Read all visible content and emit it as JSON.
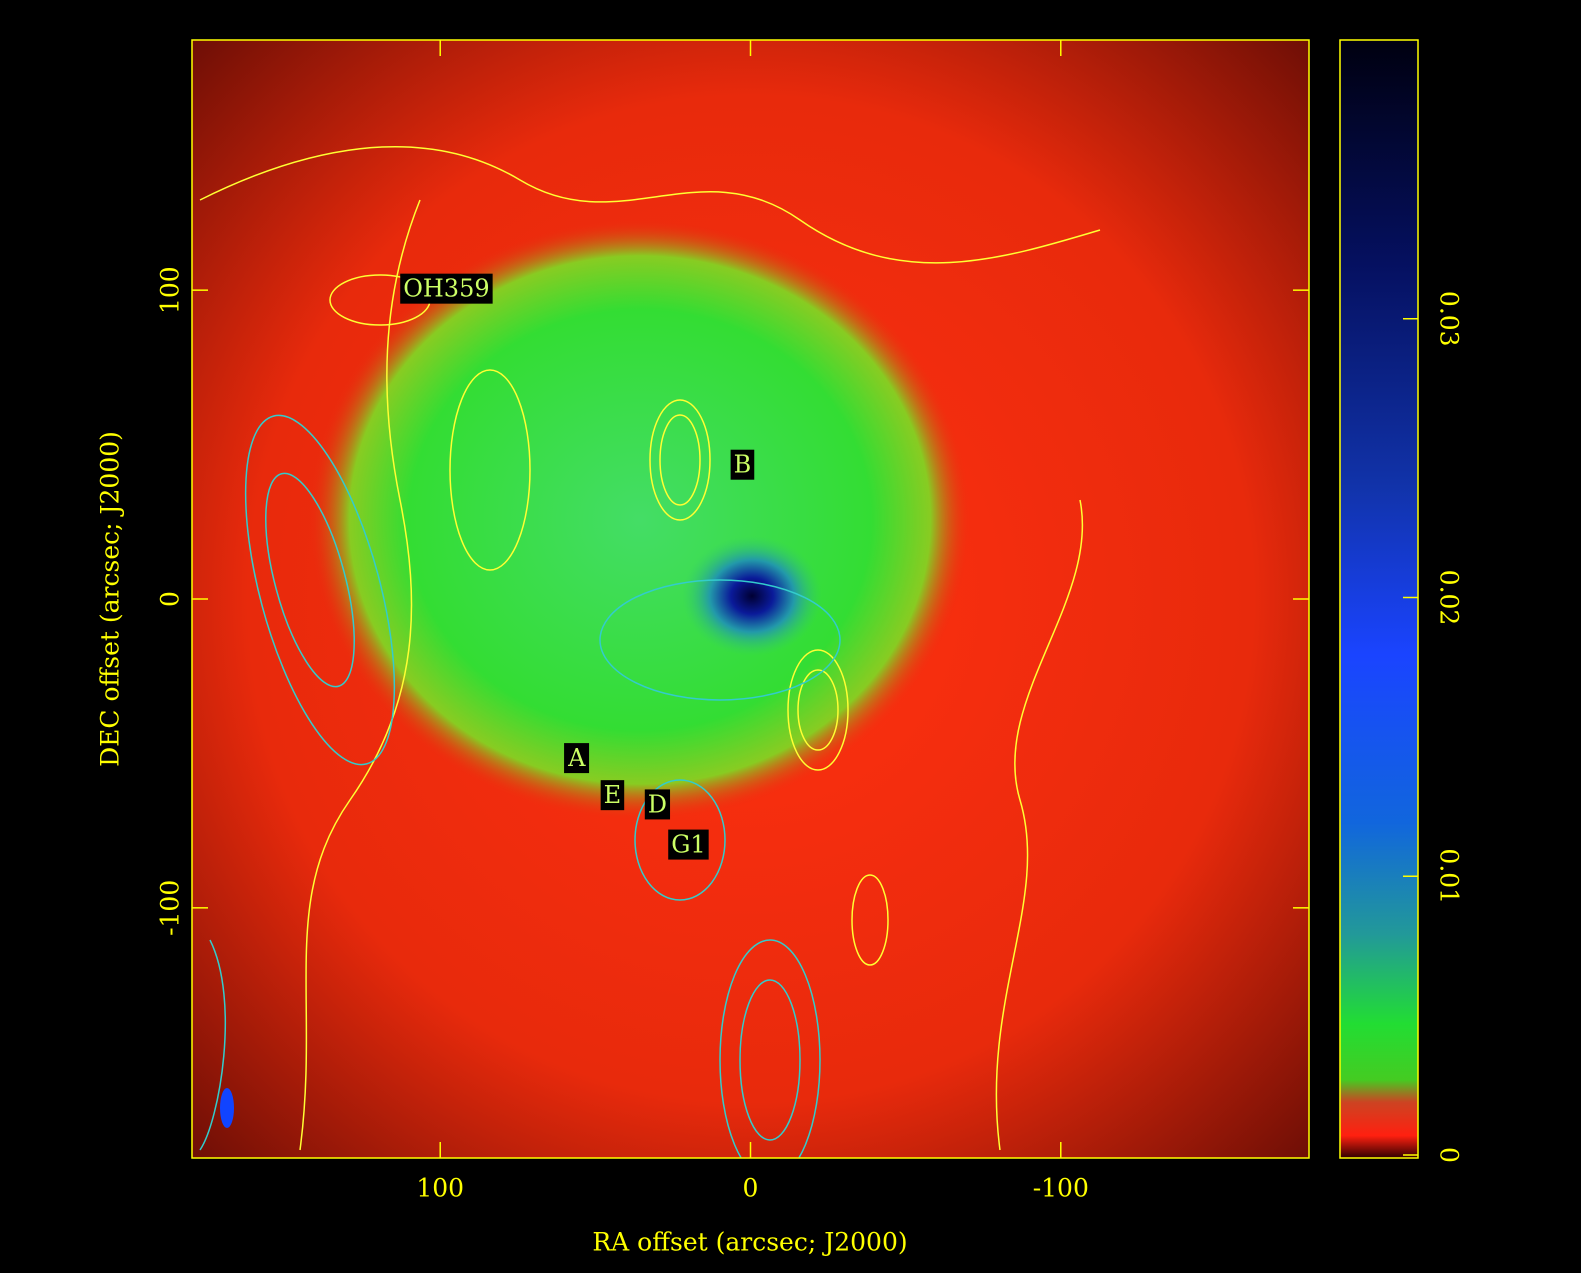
{
  "chart_data": {
    "type": "image",
    "xlabel": "RA offset (arcsec; J2000)",
    "ylabel": "DEC offset (arcsec; J2000)",
    "xlim": [
      180,
      -180
    ],
    "xticks": [
      100,
      0,
      -100
    ],
    "ylim": [
      -181,
      181
    ],
    "yticks": [
      100,
      0,
      -100
    ],
    "colorbar": {
      "lim": [
        0,
        0.04
      ],
      "ticks": [
        0,
        0.01,
        0.02,
        0.03
      ]
    },
    "annotations": [
      {
        "text": "OH359",
        "x": 98,
        "y": 100
      },
      {
        "text": "B",
        "x": 2.6,
        "y": 43
      },
      {
        "text": "A",
        "x": 56,
        "y": -52
      },
      {
        "text": "E",
        "x": 44.5,
        "y": -64
      },
      {
        "text": "D",
        "x": 30,
        "y": -67
      },
      {
        "text": "G1",
        "x": 20,
        "y": -80
      }
    ]
  }
}
